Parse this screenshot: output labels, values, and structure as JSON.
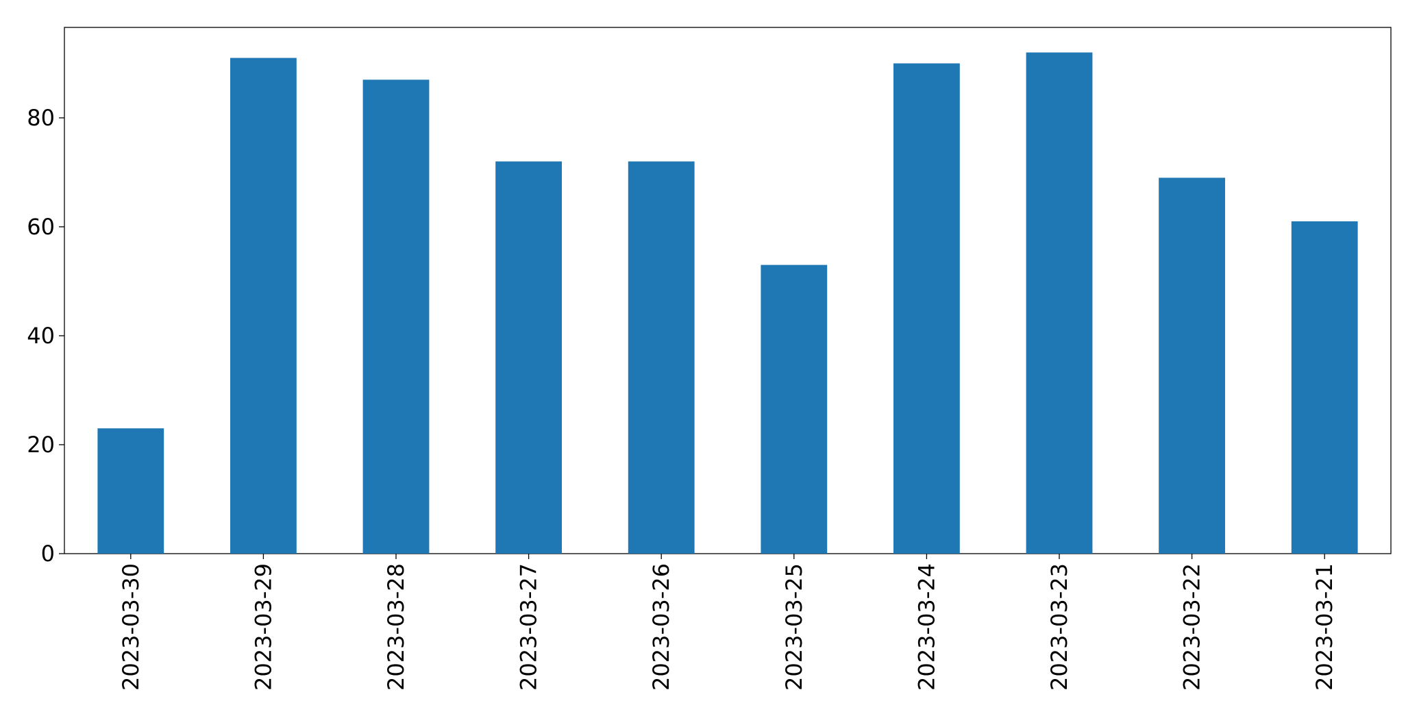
{
  "chart_data": {
    "type": "bar",
    "categories": [
      "2023-03-30",
      "2023-03-29",
      "2023-03-28",
      "2023-03-27",
      "2023-03-26",
      "2023-03-25",
      "2023-03-24",
      "2023-03-23",
      "2023-03-22",
      "2023-03-21"
    ],
    "values": [
      23,
      91,
      87,
      72,
      72,
      53,
      90,
      92,
      69,
      61
    ],
    "color": "#1f77b4",
    "ylim": [
      0,
      96.6
    ],
    "yticks": [
      0,
      20,
      40,
      60,
      80
    ],
    "grid": false
  }
}
